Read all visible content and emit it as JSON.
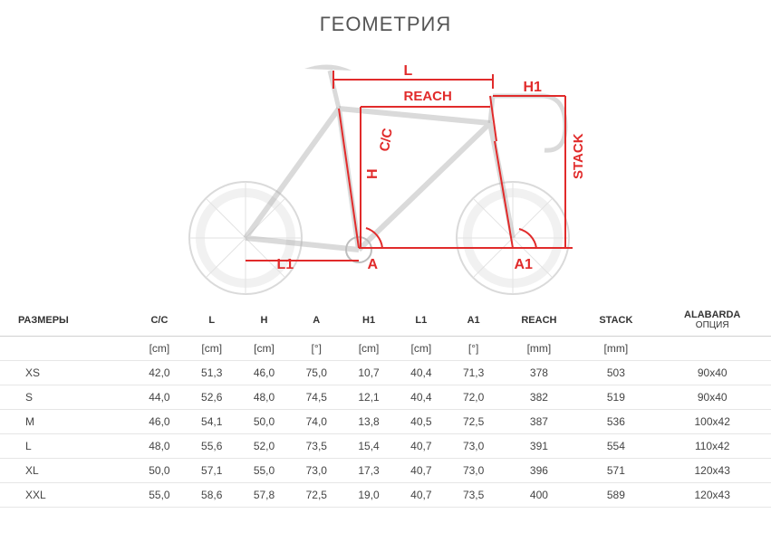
{
  "title": "ГЕОМЕТРИЯ",
  "diagram": {
    "labels": {
      "L": "L",
      "REACH": "REACH",
      "H1": "H1",
      "CC": "C/C",
      "H": "H",
      "STACK": "STACK",
      "L1": "L1",
      "A": "A",
      "A1": "A1"
    },
    "colors": {
      "line": "#e12b2b",
      "bike_ghost": "#c8c8c8",
      "bike_dark": "#888888"
    }
  },
  "table": {
    "columns": [
      "РАЗМЕРЫ",
      "C/C",
      "L",
      "H",
      "A",
      "H1",
      "L1",
      "A1",
      "REACH",
      "STACK",
      "ALABARDA ОПЦИЯ"
    ],
    "units_row": [
      "",
      "[cm]",
      "[cm]",
      "[cm]",
      "[°]",
      "[cm]",
      "[cm]",
      "[°]",
      "[mm]",
      "[mm]",
      ""
    ],
    "rows": [
      [
        "XS",
        "42,0",
        "51,3",
        "46,0",
        "75,0",
        "10,7",
        "40,4",
        "71,3",
        "378",
        "503",
        "90x40"
      ],
      [
        "S",
        "44,0",
        "52,6",
        "48,0",
        "74,5",
        "12,1",
        "40,4",
        "72,0",
        "382",
        "519",
        "90x40"
      ],
      [
        "M",
        "46,0",
        "54,1",
        "50,0",
        "74,0",
        "13,8",
        "40,5",
        "72,5",
        "387",
        "536",
        "100x42"
      ],
      [
        "L",
        "48,0",
        "55,6",
        "52,0",
        "73,5",
        "15,4",
        "40,7",
        "73,0",
        "391",
        "554",
        "110x42"
      ],
      [
        "XL",
        "50,0",
        "57,1",
        "55,0",
        "73,0",
        "17,3",
        "40,7",
        "73,0",
        "396",
        "571",
        "120x43"
      ],
      [
        "XXL",
        "55,0",
        "58,6",
        "57,8",
        "72,5",
        "19,0",
        "40,7",
        "73,5",
        "400",
        "589",
        "120x43"
      ]
    ]
  }
}
